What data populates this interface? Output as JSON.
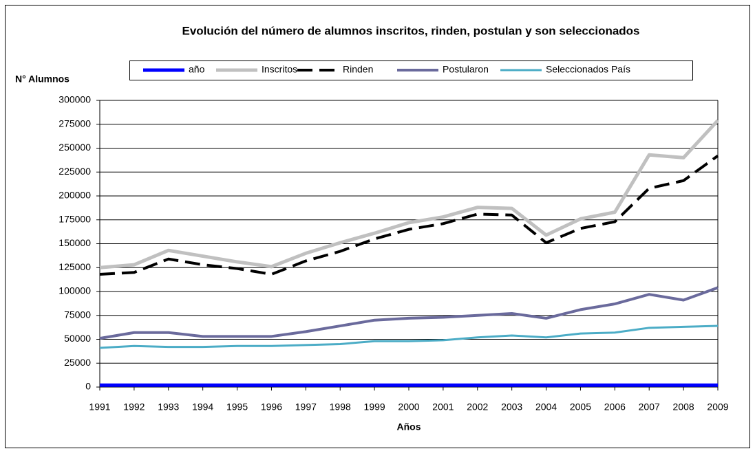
{
  "chart_data": {
    "type": "line",
    "title": "Evolución del número de alumnos inscritos, rinden, postulan y son seleccionados",
    "ylabel": "N° Alumnos",
    "xlabel": "Años",
    "categories": [
      "1991",
      "1992",
      "1993",
      "1994",
      "1995",
      "1996",
      "1997",
      "1998",
      "1999",
      "2000",
      "2001",
      "2002",
      "2003",
      "2004",
      "2005",
      "2006",
      "2007",
      "2008",
      "2009"
    ],
    "series": [
      {
        "name": "año",
        "color": "#0000ff",
        "width": 5,
        "dash": false,
        "values": [
          1991,
          1992,
          1993,
          1994,
          1995,
          1996,
          1997,
          1998,
          1999,
          2000,
          2001,
          2002,
          2003,
          2004,
          2005,
          2006,
          2007,
          2008,
          2009
        ]
      },
      {
        "name": "Inscritos",
        "color": "#c0c0c0",
        "width": 5,
        "dash": false,
        "values": [
          125000,
          128000,
          143000,
          137000,
          131000,
          126000,
          140000,
          151000,
          161000,
          172000,
          178000,
          188000,
          187000,
          159000,
          176000,
          183000,
          243000,
          240000,
          279000
        ]
      },
      {
        "name": "Rinden",
        "color": "#000000",
        "width": 4,
        "dash": true,
        "values": [
          118000,
          120000,
          134000,
          128000,
          124000,
          118000,
          132000,
          142000,
          155000,
          165000,
          171000,
          181000,
          180000,
          151000,
          166000,
          173000,
          208000,
          216000,
          242000
        ]
      },
      {
        "name": "Postularon",
        "color": "#6a6a9c",
        "width": 4,
        "dash": false,
        "values": [
          51000,
          57000,
          57000,
          53000,
          53000,
          53000,
          58000,
          64000,
          70000,
          72000,
          73000,
          75000,
          77000,
          72000,
          81000,
          87000,
          97000,
          91000,
          104000
        ]
      },
      {
        "name": "Seleccionados País",
        "color": "#4bacc6",
        "width": 3,
        "dash": false,
        "values": [
          41000,
          43000,
          42000,
          42000,
          43000,
          43000,
          44000,
          45000,
          48000,
          48000,
          49000,
          52000,
          54000,
          52000,
          56000,
          57000,
          62000,
          63000,
          64000
        ]
      }
    ],
    "ylim": [
      0,
      300000
    ],
    "yticks": [
      0,
      25000,
      50000,
      75000,
      100000,
      125000,
      150000,
      175000,
      200000,
      225000,
      250000,
      275000,
      300000
    ],
    "grid": true,
    "legend": "top"
  }
}
